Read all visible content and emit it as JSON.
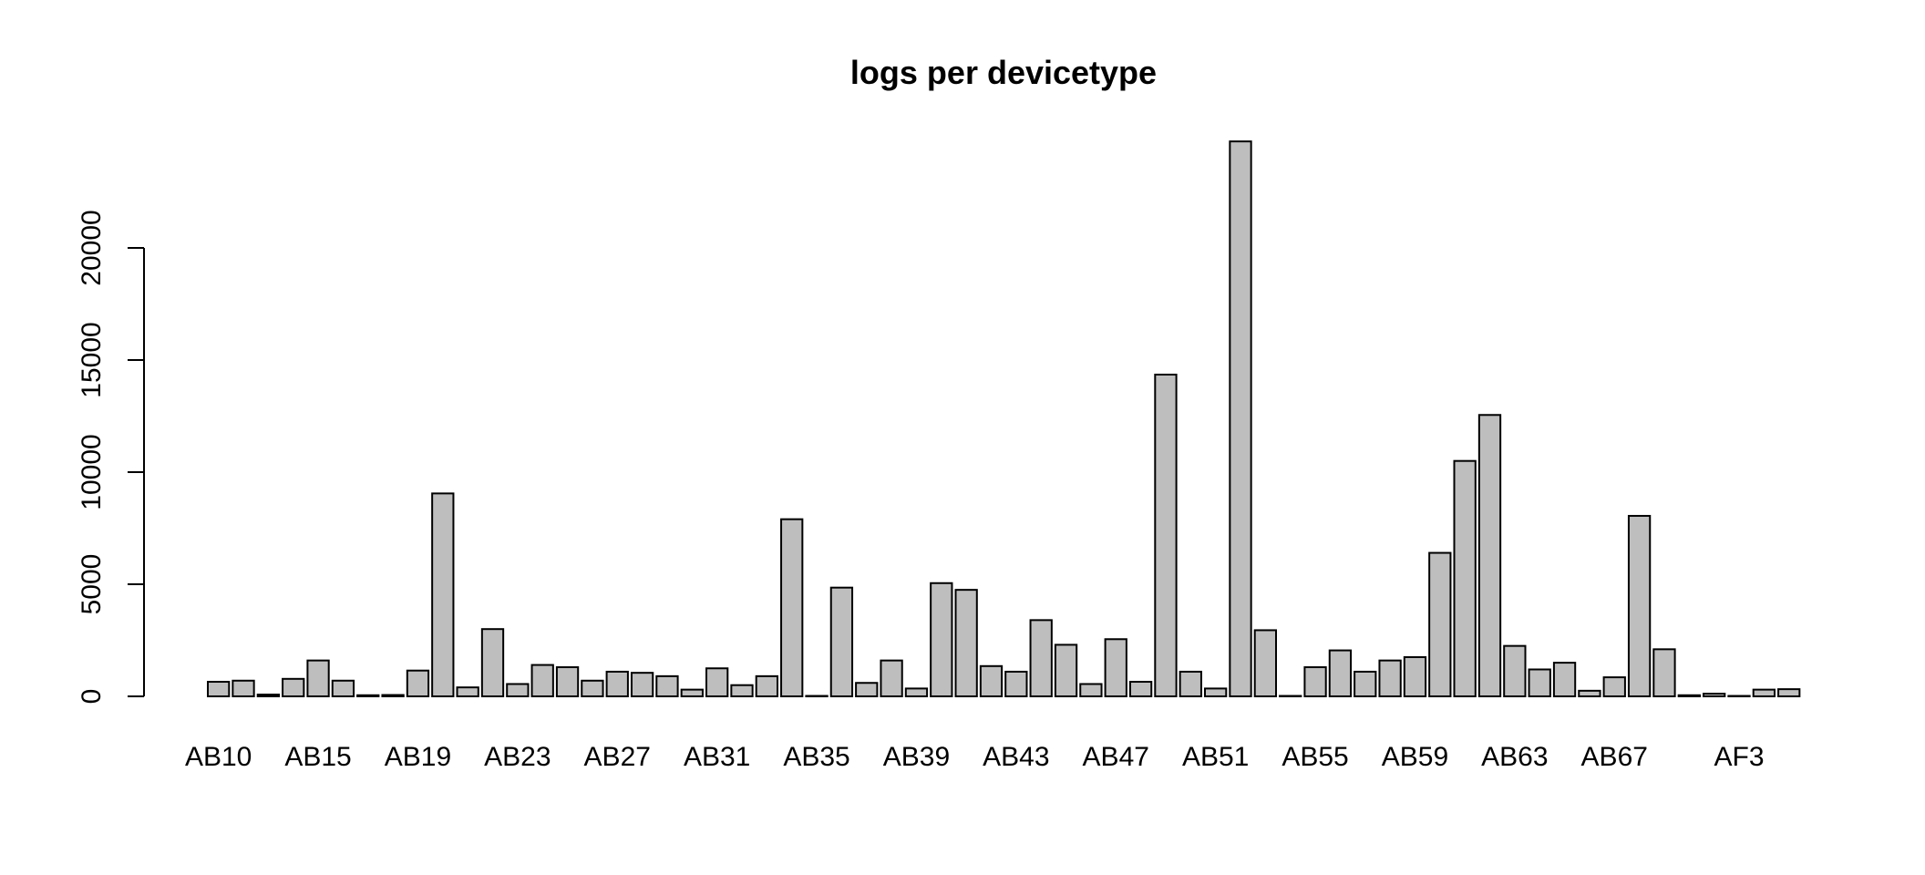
{
  "chart_data": {
    "type": "bar",
    "title": "logs per devicetype",
    "xlabel": "",
    "ylabel": "",
    "ylim": [
      0,
      25500
    ],
    "yticks": [
      0,
      5000,
      10000,
      15000,
      20000
    ],
    "ytick_labels": [
      "0",
      "5000",
      "10000",
      "15000",
      "20000"
    ],
    "xtick_labels": [
      "AB10",
      "AB15",
      "AB19",
      "AB23",
      "AB27",
      "AB31",
      "AB35",
      "AB39",
      "AB43",
      "AB47",
      "AB51",
      "AB55",
      "AB59",
      "AB63",
      "AB67",
      "AF3"
    ],
    "bar_color": "#bebebe",
    "grid": false,
    "legend": "none",
    "values": [
      650,
      700,
      80,
      780,
      1600,
      700,
      50,
      60,
      1150,
      9050,
      400,
      3000,
      550,
      1400,
      1300,
      700,
      1100,
      1050,
      900,
      300,
      1250,
      500,
      900,
      7900,
      20,
      4850,
      600,
      1600,
      350,
      5050,
      4750,
      1350,
      1100,
      3400,
      2300,
      550,
      2550,
      650,
      14350,
      1100,
      350,
      24750,
      2950,
      20,
      1300,
      2050,
      1100,
      1600,
      1750,
      6400,
      10500,
      12550,
      2250,
      1200,
      1500,
      250,
      850,
      8050,
      2100,
      50,
      120,
      20,
      300,
      320
    ]
  }
}
